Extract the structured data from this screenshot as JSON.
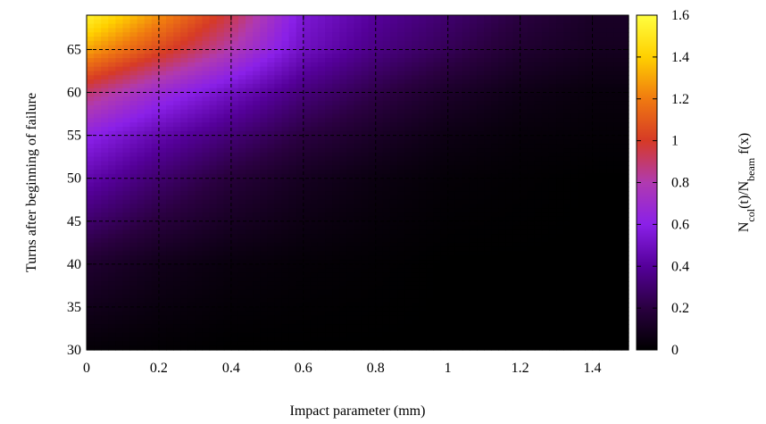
{
  "chart_data": {
    "type": "heatmap",
    "title": "",
    "xlabel": "Impact parameter (mm)",
    "ylabel": "Turns after beginning of failure",
    "colorbar_label": {
      "main": "N",
      "sub1": "col",
      "mid": "(t)/N",
      "sub2": "beam",
      "tail": " f(x)"
    },
    "xlim": [
      0,
      1.5
    ],
    "ylim": [
      30,
      69
    ],
    "x_ticks": [
      "0",
      "0.2",
      "0.4",
      "0.6",
      "0.8",
      "1",
      "1.2",
      "1.4"
    ],
    "y_ticks": [
      "30",
      "35",
      "40",
      "45",
      "50",
      "55",
      "60",
      "65"
    ],
    "colorbar_ticks": [
      "0",
      "0.2",
      "0.4",
      "0.6",
      "0.8",
      "1",
      "1.2",
      "1.4",
      "1.6"
    ],
    "zlim": [
      0,
      1.6
    ],
    "colormap": [
      "#000000",
      "#2a0040",
      "#55009a",
      "#8a20e8",
      "#b03ab0",
      "#d63a26",
      "#f07a10",
      "#ffd000",
      "#ffff40"
    ],
    "grid": true,
    "approx_values": {
      "x": [
        0,
        0.2,
        0.4,
        0.6,
        0.8,
        1.0,
        1.2,
        1.4
      ],
      "y": [
        30,
        40,
        50,
        55,
        60,
        65,
        69
      ],
      "z": [
        [
          0.02,
          0.01,
          0.0,
          0.0,
          0.0,
          0.0,
          0.0,
          0.0
        ],
        [
          0.15,
          0.08,
          0.04,
          0.02,
          0.01,
          0.0,
          0.0,
          0.0
        ],
        [
          0.45,
          0.3,
          0.18,
          0.1,
          0.05,
          0.02,
          0.01,
          0.0
        ],
        [
          0.62,
          0.45,
          0.32,
          0.2,
          0.12,
          0.06,
          0.03,
          0.02
        ],
        [
          0.9,
          0.68,
          0.5,
          0.33,
          0.22,
          0.13,
          0.07,
          0.04
        ],
        [
          1.3,
          1.05,
          0.8,
          0.5,
          0.35,
          0.25,
          0.15,
          0.1
        ],
        [
          1.55,
          1.25,
          0.95,
          0.55,
          0.4,
          0.3,
          0.2,
          0.12
        ]
      ]
    }
  }
}
